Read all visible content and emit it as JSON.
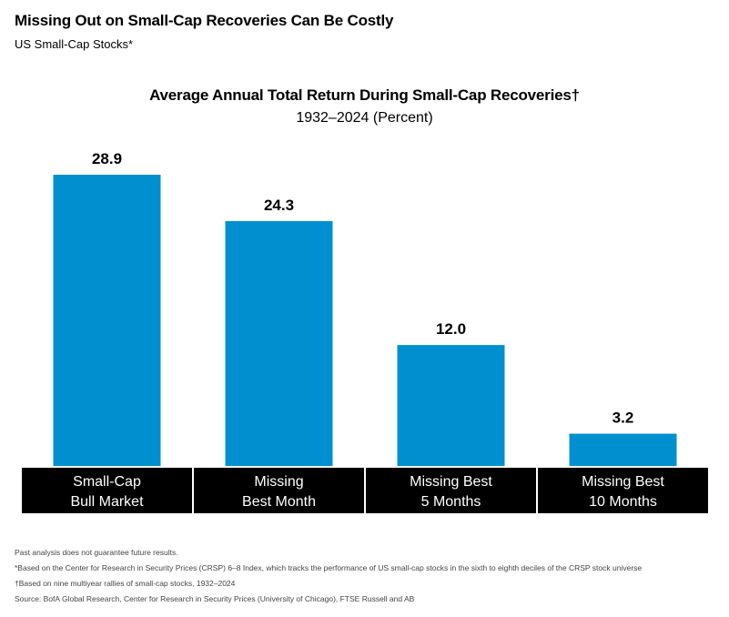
{
  "header": {
    "title": "Missing Out on Small-Cap Recoveries Can Be Costly",
    "subtitle": "US Small-Cap Stocks*"
  },
  "chart_data": {
    "type": "bar",
    "title": "Average Annual Total Return During Small-Cap Recoveries†",
    "subtitle": "1932–2024 (Percent)",
    "categories": [
      [
        "Small-Cap",
        "Bull Market"
      ],
      [
        "Missing",
        "Best Month"
      ],
      [
        "Missing Best",
        "5 Months"
      ],
      [
        "Missing Best",
        "10 Months"
      ]
    ],
    "values": [
      28.9,
      24.3,
      12.0,
      3.2
    ],
    "value_labels": [
      "28.9",
      "24.3",
      "12.0",
      "3.2"
    ],
    "ylim": [
      0,
      28.9
    ],
    "grid": false,
    "legend": "none",
    "bar_color": "#0090d0",
    "category_band_color": "#000000"
  },
  "footnotes": [
    "Past analysis does not guarantee future results.",
    "*Based on the Center for Research in Security Prices (CRSP) 6–8 Index, which tracks the performance of US small-cap stocks in the sixth to eighth deciles of the CRSP stock universe",
    "†Based on nine multiyear rallies of small-cap stocks, 1932–2024",
    "Source: BofA Global Research, Center for Research in Security Prices (University of Chicago), FTSE Russell and AB"
  ]
}
